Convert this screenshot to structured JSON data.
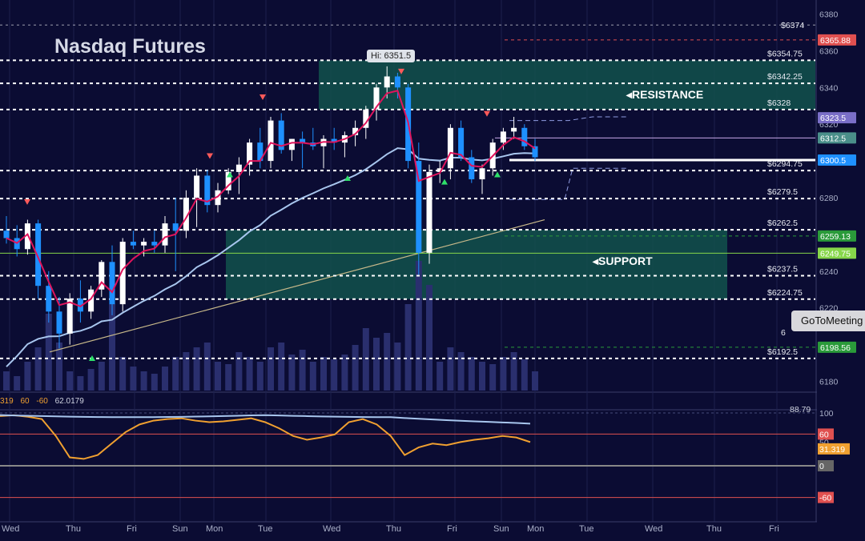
{
  "title": "Nasdaq Futures",
  "hi_label": "Hi: 6351.5",
  "resistance_label": "RESISTANCE",
  "support_label": "SUPPORT",
  "popup_label": "GoToMeeting",
  "oscillator_header": {
    "v1": "319",
    "v2": "60",
    "v3": "-60",
    "v4": "62.0179"
  },
  "colors": {
    "background": "#0b0c33",
    "zone": "#12524c",
    "bull_candle": "#ffffff",
    "bear_candle": "#1e90ff",
    "ema_fast": "#e0145c",
    "ema_slow": "#a8c6ee",
    "oscillator": "#f0a030",
    "volume": "#2a2f6e",
    "trendline": "#c8b98a"
  },
  "chart_data": {
    "type": "candlestick",
    "title": "Nasdaq Futures",
    "y_axis": {
      "ylim": [
        6175,
        6385
      ],
      "ticks": [
        "6380",
        "6360",
        "6340",
        "6320",
        "6300",
        "6280",
        "6260",
        "6240",
        "6220",
        "6200",
        "6180"
      ]
    },
    "x_axis": {
      "day_labels": [
        "Wed",
        "Thu",
        "Fri",
        "Sun",
        "Mon",
        "Tue",
        "Wed",
        "Thu",
        "Fri",
        "Sun",
        "Mon",
        "Tue",
        "Wed",
        "Thu",
        "Fri"
      ]
    },
    "levels": {
      "dashed_white": [
        "6354.75",
        "6342.25",
        "6328",
        "6294.75",
        "6279.5",
        "6262.5",
        "6237.5",
        "6224.75",
        "6192.5"
      ],
      "top_level": "6374",
      "partially_hidden": "6"
    },
    "price_badges": [
      {
        "value": "6365.88",
        "color": "#e05050"
      },
      {
        "value": "6323.5",
        "color": "#7a6fc8"
      },
      {
        "value": "6312.5",
        "color": "#4a8f8a"
      },
      {
        "value": "6300.5",
        "color": "#1e90ff"
      },
      {
        "value": "6259.13",
        "color": "#2a9a3a"
      },
      {
        "value": "6249.75",
        "color": "#86d64a"
      },
      {
        "value": "6198.56",
        "color": "#2a9a3a"
      }
    ],
    "zones": [
      {
        "name": "resistance",
        "from": 6328,
        "to": 6354.75
      },
      {
        "name": "support",
        "from": 6224.75,
        "to": 6262.5
      }
    ],
    "candles": [
      [
        6262,
        6270,
        6255,
        6258
      ],
      [
        6258,
        6265,
        6248,
        6252
      ],
      [
        6252,
        6268,
        6249,
        6266
      ],
      [
        6266,
        6268,
        6225,
        6232
      ],
      [
        6232,
        6240,
        6212,
        6218
      ],
      [
        6218,
        6226,
        6198,
        6206
      ],
      [
        6206,
        6228,
        6200,
        6225
      ],
      [
        6225,
        6235,
        6212,
        6218
      ],
      [
        6218,
        6232,
        6214,
        6230
      ],
      [
        6230,
        6246,
        6226,
        6245
      ],
      [
        6245,
        6254,
        6216,
        6222
      ],
      [
        6222,
        6258,
        6218,
        6256
      ],
      [
        6256,
        6262,
        6252,
        6254
      ],
      [
        6254,
        6258,
        6248,
        6256
      ],
      [
        6256,
        6262,
        6250,
        6254
      ],
      [
        6254,
        6270,
        6250,
        6266
      ],
      [
        6266,
        6280,
        6240,
        6262
      ],
      [
        6262,
        6284,
        6258,
        6280
      ],
      [
        6280,
        6296,
        6264,
        6292
      ],
      [
        6292,
        6295,
        6272,
        6276
      ],
      [
        6276,
        6288,
        6272,
        6284
      ],
      [
        6284,
        6296,
        6282,
        6294
      ],
      [
        6294,
        6302,
        6282,
        6298
      ],
      [
        6298,
        6312,
        6292,
        6310
      ],
      [
        6310,
        6318,
        6296,
        6300
      ],
      [
        6300,
        6324,
        6296,
        6322
      ],
      [
        6322,
        6326,
        6304,
        6306
      ],
      [
        6306,
        6312,
        6300,
        6312
      ],
      [
        6312,
        6316,
        6296,
        6310
      ],
      [
        6310,
        6318,
        6306,
        6308
      ],
      [
        6308,
        6314,
        6296,
        6312
      ],
      [
        6312,
        6318,
        6306,
        6310
      ],
      [
        6310,
        6316,
        6302,
        6314
      ],
      [
        6314,
        6322,
        6308,
        6318
      ],
      [
        6318,
        6330,
        6312,
        6328
      ],
      [
        6328,
        6342,
        6322,
        6340
      ],
      [
        6340,
        6351.5,
        6334,
        6346
      ],
      [
        6346,
        6348,
        6334,
        6340
      ],
      [
        6340,
        6342,
        6296,
        6300
      ],
      [
        6300,
        6310,
        6238,
        6250
      ],
      [
        6250,
        6298,
        6244,
        6294
      ],
      [
        6294,
        6300,
        6288,
        6296
      ],
      [
        6296,
        6320,
        6290,
        6318
      ],
      [
        6318,
        6322,
        6300,
        6302
      ],
      [
        6302,
        6306,
        6288,
        6290
      ],
      [
        6290,
        6298,
        6282,
        6296
      ],
      [
        6296,
        6312,
        6292,
        6310
      ],
      [
        6310,
        6318,
        6306,
        6316
      ],
      [
        6316,
        6324,
        6312,
        6318
      ],
      [
        6318,
        6320,
        6306,
        6308
      ],
      [
        6308,
        6312,
        6300,
        6302
      ]
    ],
    "volume": [
      40,
      30,
      60,
      90,
      160,
      100,
      40,
      30,
      45,
      60,
      180,
      70,
      50,
      40,
      35,
      50,
      70,
      80,
      90,
      100,
      60,
      55,
      80,
      70,
      60,
      90,
      100,
      75,
      85,
      60,
      70,
      65,
      75,
      95,
      130,
      110,
      120,
      100,
      180,
      270,
      220,
      60,
      90,
      80,
      70,
      60,
      55,
      70,
      80,
      65,
      40
    ],
    "oscillator": [
      96,
      97,
      95,
      92,
      70,
      42,
      40,
      45,
      60,
      75,
      85,
      90,
      92,
      93,
      90,
      88,
      89,
      91,
      93,
      88,
      80,
      70,
      65,
      68,
      72,
      88,
      92,
      85,
      70,
      45,
      55,
      60,
      58,
      62,
      65,
      67,
      70,
      68,
      62
    ],
    "oscillator_levels": {
      "upper": "60",
      "lower": "-60",
      "zero": "0",
      "top": "100",
      "labels": [
        "88.79",
        "100",
        "50",
        "60",
        "31.319",
        "0",
        "-60"
      ]
    }
  }
}
